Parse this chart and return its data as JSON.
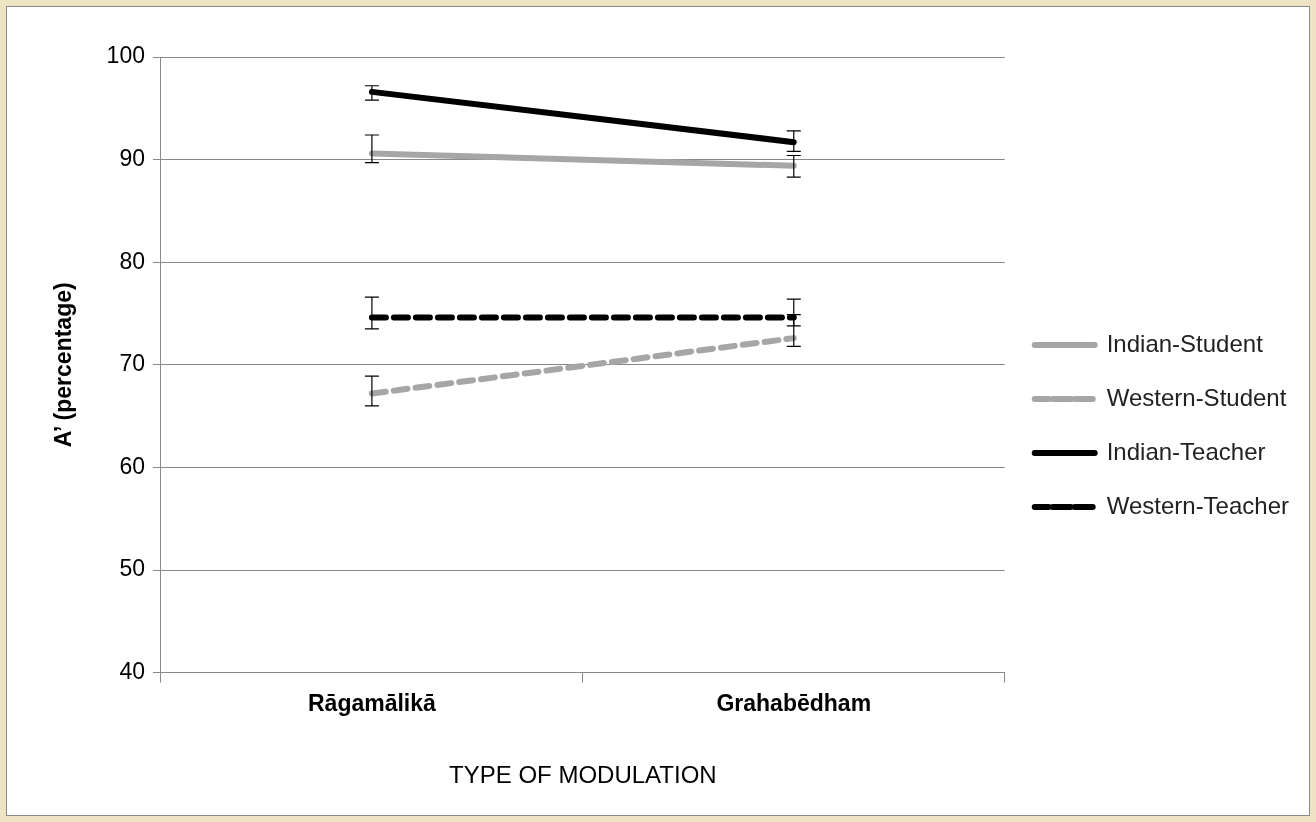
{
  "chart_data": {
    "type": "line",
    "xlabel": "TYPE OF MODULATION",
    "ylabel": "A’ (percentage)",
    "categories": [
      "Rāgamālikā",
      "Grahabēdham"
    ],
    "ylim": [
      40,
      100
    ],
    "yticks": [
      40,
      50,
      60,
      70,
      80,
      90,
      100
    ],
    "grid": "y",
    "legend": "right",
    "series": [
      {
        "name": "Indian-Student",
        "color": "#a6a6a6",
        "line_style": "solid",
        "values": [
          90.6,
          89.4
        ],
        "errors": [
          [
            89.7,
            92.4
          ],
          [
            88.3,
            90.4
          ]
        ]
      },
      {
        "name": "Western-Student",
        "color": "#a6a6a6",
        "line_style": "dashed",
        "values": [
          67.2,
          72.6
        ],
        "errors": [
          [
            66.0,
            68.9
          ],
          [
            71.8,
            74.9
          ]
        ]
      },
      {
        "name": "Indian-Teacher",
        "color": "#000000",
        "line_style": "solid",
        "values": [
          96.6,
          91.7
        ],
        "errors": [
          [
            95.8,
            97.2
          ],
          [
            90.8,
            92.8
          ]
        ]
      },
      {
        "name": "Western-Teacher",
        "color": "#000000",
        "line_style": "dashed",
        "values": [
          74.6,
          74.6
        ],
        "errors": [
          [
            73.5,
            76.6
          ],
          [
            73.8,
            76.4
          ]
        ]
      }
    ]
  }
}
